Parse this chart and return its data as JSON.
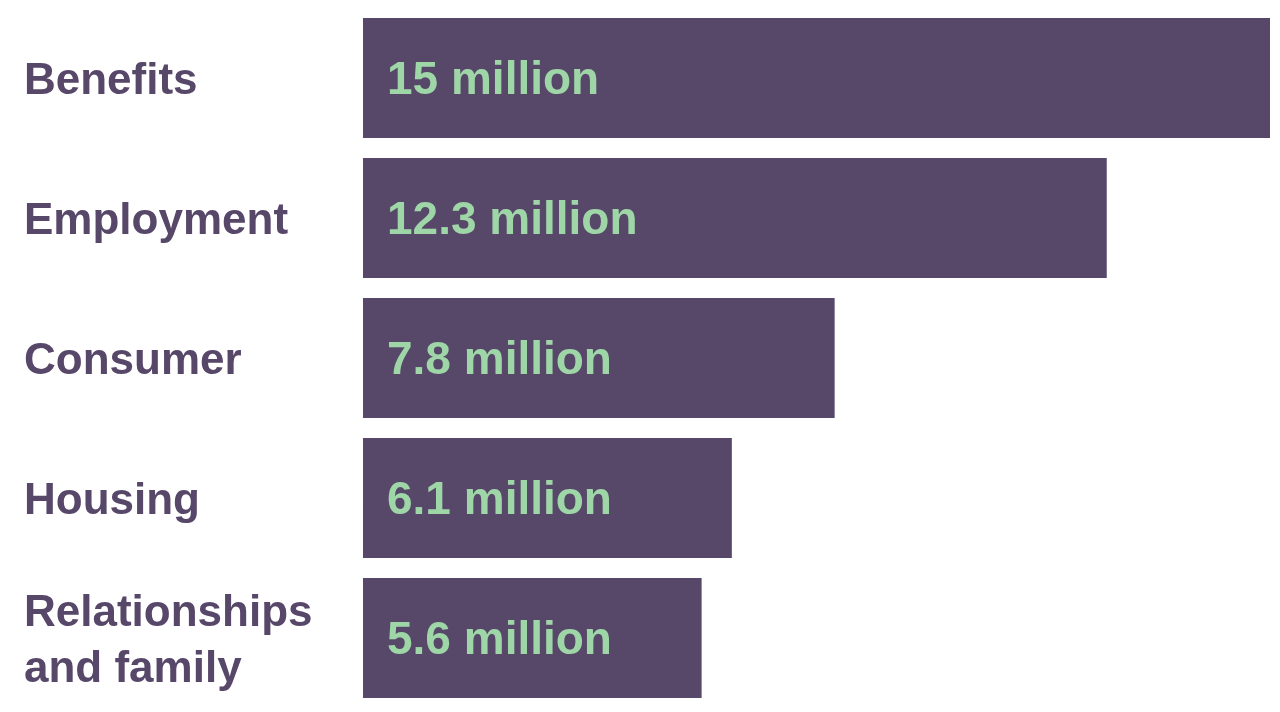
{
  "chart_data": {
    "type": "bar",
    "orientation": "horizontal",
    "categories": [
      "Benefits",
      "Employment",
      "Consumer",
      "Housing",
      "Relationships and family"
    ],
    "values": [
      15,
      12.3,
      7.8,
      6.1,
      5.6
    ],
    "value_labels": [
      "15 million",
      "12.3 million",
      "7.8 million",
      "6.1 million",
      "5.6 million"
    ],
    "color": "#574769"
  }
}
